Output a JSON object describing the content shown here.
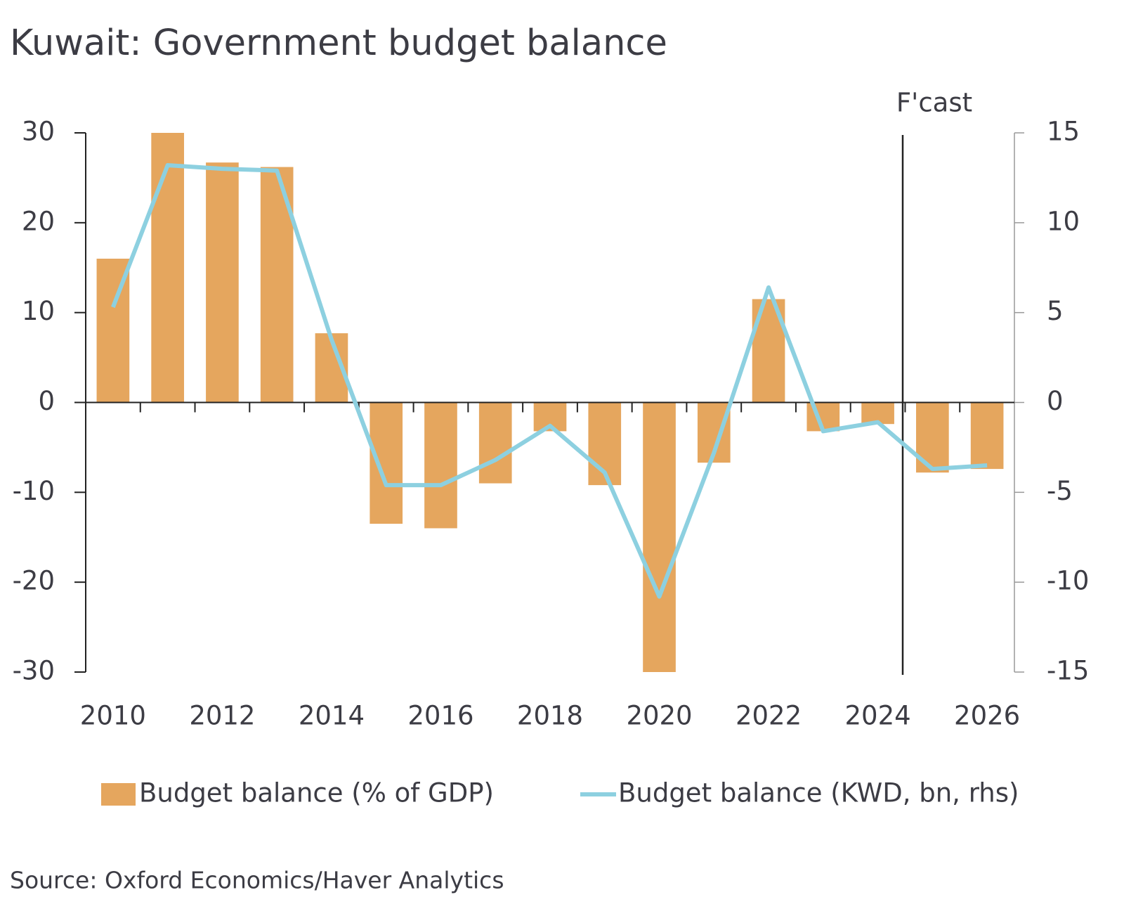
{
  "chart_data": {
    "type": "bar-line",
    "title": "Kuwait: Government budget balance",
    "annotation": "F'cast",
    "source": "Source: Oxford Economics/Haver Analytics",
    "categories": [
      "2010",
      null,
      "2012",
      null,
      "2014",
      null,
      "2016",
      null,
      "2018",
      null,
      "2020",
      null,
      "2022",
      null,
      "2024",
      null,
      "2026"
    ],
    "series": [
      {
        "name": "Budget balance (% of GDP)",
        "type": "bar",
        "color": "#e5a65e",
        "values": [
          16,
          30,
          26.7,
          26.2,
          7.7,
          -13.5,
          -14,
          -9,
          -3.2,
          -9.2,
          -30,
          -6.7,
          11.5,
          -3.2,
          -2.4,
          -7.8,
          -7.4
        ]
      },
      {
        "name": "Budget balance (KWD, bn, rhs)",
        "type": "line",
        "axis": "y2",
        "color": "#8dd0e0",
        "values": [
          5.3,
          13.2,
          13.0,
          12.9,
          3.5,
          -4.6,
          -4.6,
          -3.2,
          -1.3,
          -3.9,
          -10.8,
          -2.8,
          6.4,
          -1.6,
          -1.1,
          -3.7,
          -3.5
        ]
      }
    ],
    "ylim": [
      -30,
      30
    ],
    "yticks": [
      -30,
      -20,
      -10,
      0,
      10,
      20,
      30
    ],
    "y2lim": [
      -15,
      15
    ],
    "y2ticks": [
      -15,
      -10,
      -5,
      0,
      5,
      10,
      15
    ],
    "grid": false,
    "legend": "bottom"
  }
}
